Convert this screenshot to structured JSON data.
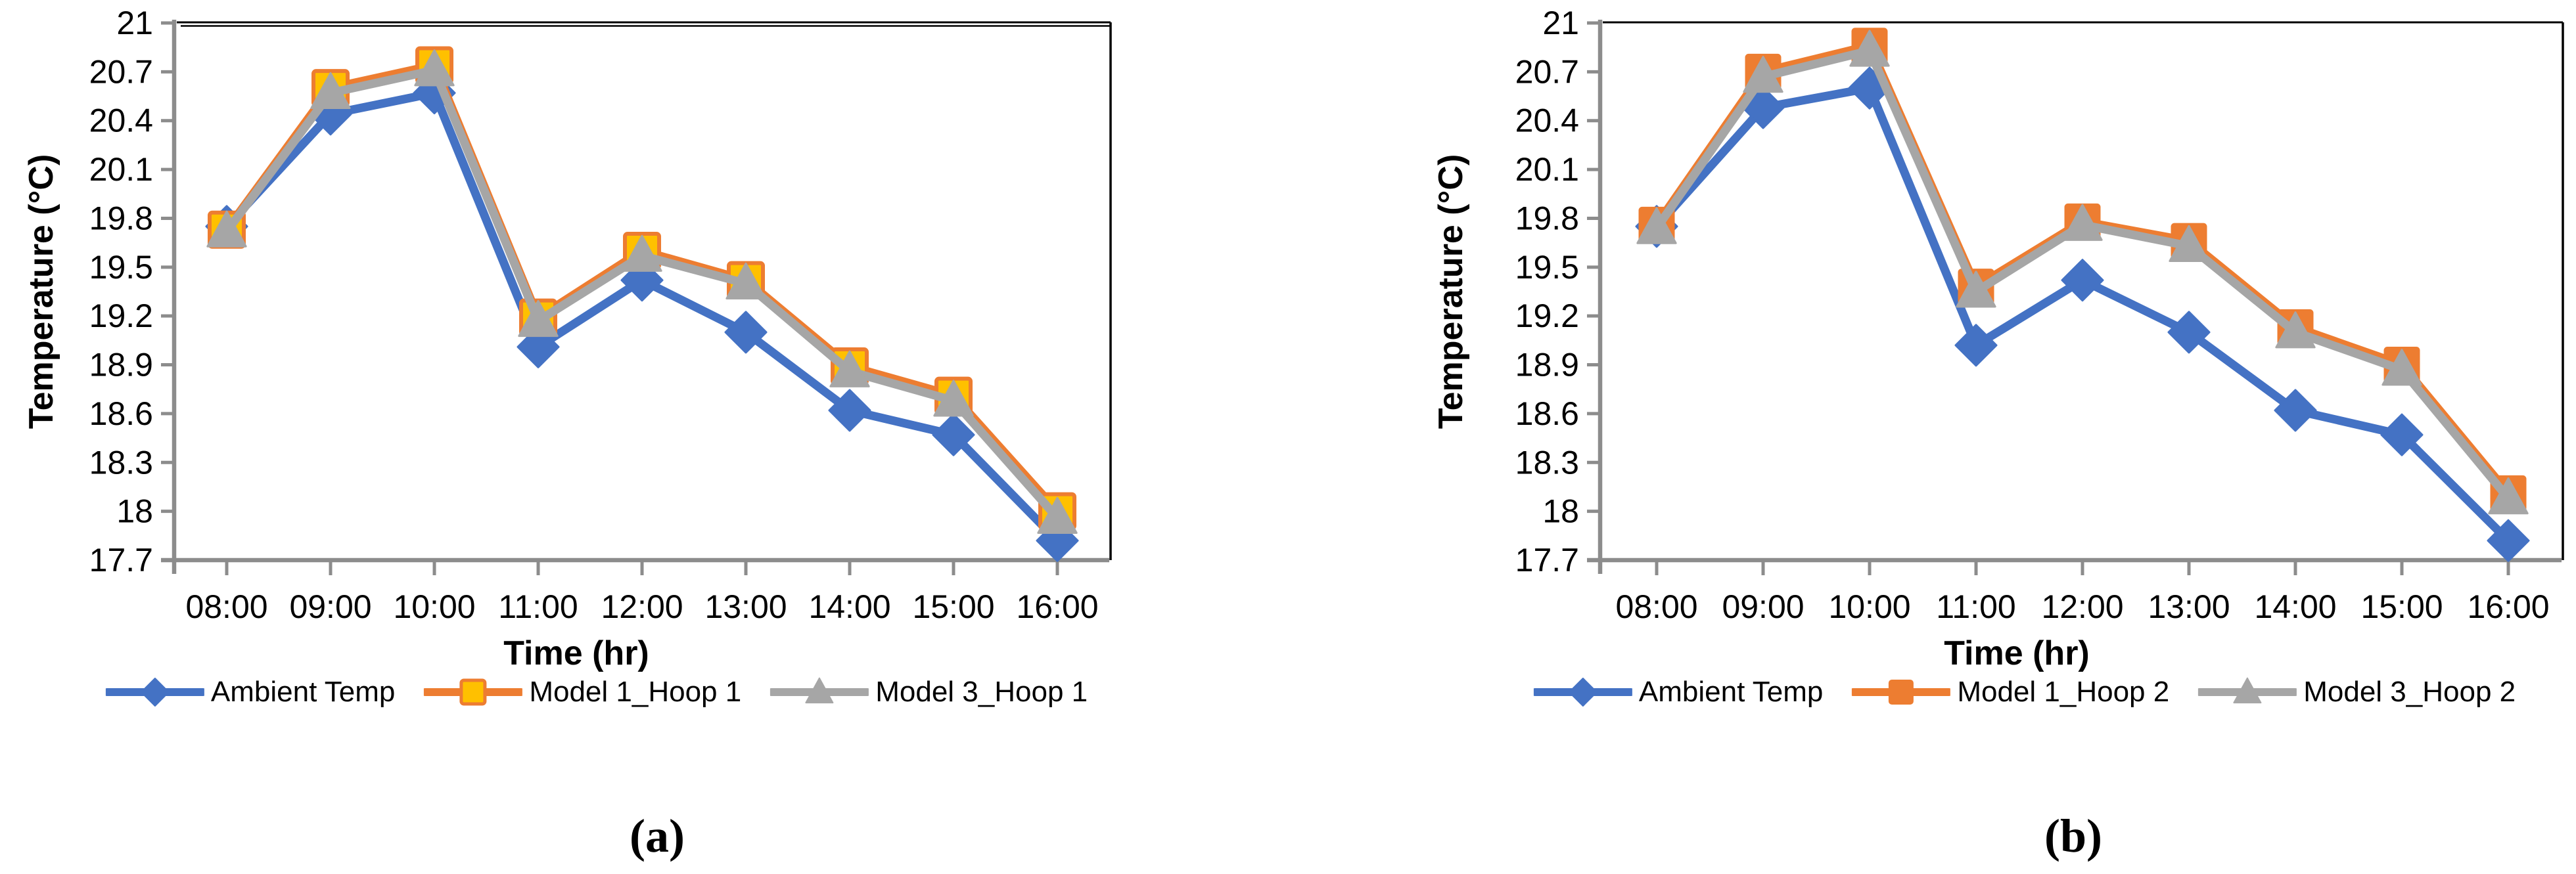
{
  "page": {
    "background": "#ffffff",
    "text_color": "#000000"
  },
  "styles": {
    "axis_color": "#8C8C8C",
    "plot_border_color": "#000000",
    "ambient_blue": "#4472C4",
    "model1_orange": "#ED7D31",
    "model1_square_fill_panel_a": "#FFC000",
    "model3_gray": "#A6A6A6"
  },
  "chart_data": [
    {
      "type": "line",
      "title": "",
      "sublabel": "(a)",
      "xlabel": "Time (hr)",
      "ylabel": "Temperature (°C)",
      "categories": [
        "08:00",
        "09:00",
        "10:00",
        "11:00",
        "12:00",
        "13:00",
        "14:00",
        "15:00",
        "16:00"
      ],
      "ylim": [
        17.7,
        21
      ],
      "ytick_step": 0.3,
      "ytick_labels": [
        "21",
        "20.7",
        "20.4",
        "20.1",
        "19.8",
        "19.5",
        "19.2",
        "18.9",
        "18.6",
        "18.3",
        "18",
        "17.7"
      ],
      "grid": false,
      "legend_position": "bottom",
      "series": [
        {
          "name": "Ambient Temp",
          "color": "#4472C4",
          "marker": "diamond",
          "marker_fill": "#4472C4",
          "marker_stroke": "#4472C4",
          "values": [
            19.75,
            20.44,
            20.57,
            19.01,
            19.42,
            19.1,
            18.62,
            18.47,
            17.82
          ]
        },
        {
          "name": "Model 1_Hoop 1",
          "color": "#ED7D31",
          "marker": "square",
          "marker_fill": "#FFC000",
          "marker_stroke": "#ED7D31",
          "values": [
            19.73,
            20.6,
            20.74,
            19.19,
            19.6,
            19.42,
            18.89,
            18.71,
            18.0
          ]
        },
        {
          "name": "Model 3_Hoop 1",
          "color": "#A6A6A6",
          "marker": "triangle",
          "marker_fill": "#A6A6A6",
          "marker_stroke": "#A6A6A6",
          "values": [
            19.72,
            20.57,
            20.71,
            19.17,
            19.57,
            19.4,
            18.86,
            18.68,
            17.96
          ]
        }
      ]
    },
    {
      "type": "line",
      "title": "",
      "sublabel": "(b)",
      "xlabel": "Time (hr)",
      "ylabel": "Temperature (°C)",
      "categories": [
        "08:00",
        "09:00",
        "10:00",
        "11:00",
        "12:00",
        "13:00",
        "14:00",
        "15:00",
        "16:00"
      ],
      "ylim": [
        17.7,
        21
      ],
      "ytick_step": 0.3,
      "ytick_labels": [
        "21",
        "20.7",
        "20.4",
        "20.1",
        "19.8",
        "19.5",
        "19.2",
        "18.9",
        "18.6",
        "18.3",
        "18",
        "17.7"
      ],
      "grid": false,
      "legend_position": "bottom",
      "series": [
        {
          "name": "Ambient Temp",
          "color": "#4472C4",
          "marker": "diamond",
          "marker_fill": "#4472C4",
          "marker_stroke": "#4472C4",
          "values": [
            19.75,
            20.48,
            20.6,
            19.02,
            19.42,
            19.1,
            18.62,
            18.47,
            17.82
          ]
        },
        {
          "name": "Model 1_Hoop 2",
          "color": "#ED7D31",
          "marker": "square",
          "marker_fill": "#ED7D31",
          "marker_stroke": "#ED7D31",
          "values": [
            19.76,
            20.7,
            20.86,
            19.38,
            19.78,
            19.66,
            19.13,
            18.9,
            18.11
          ]
        },
        {
          "name": "Model 3_Hoop 2",
          "color": "#A6A6A6",
          "marker": "triangle",
          "marker_fill": "#A6A6A6",
          "marker_stroke": "#A6A6A6",
          "values": [
            19.74,
            20.67,
            20.83,
            19.35,
            19.76,
            19.63,
            19.1,
            18.87,
            18.08
          ]
        }
      ]
    }
  ]
}
